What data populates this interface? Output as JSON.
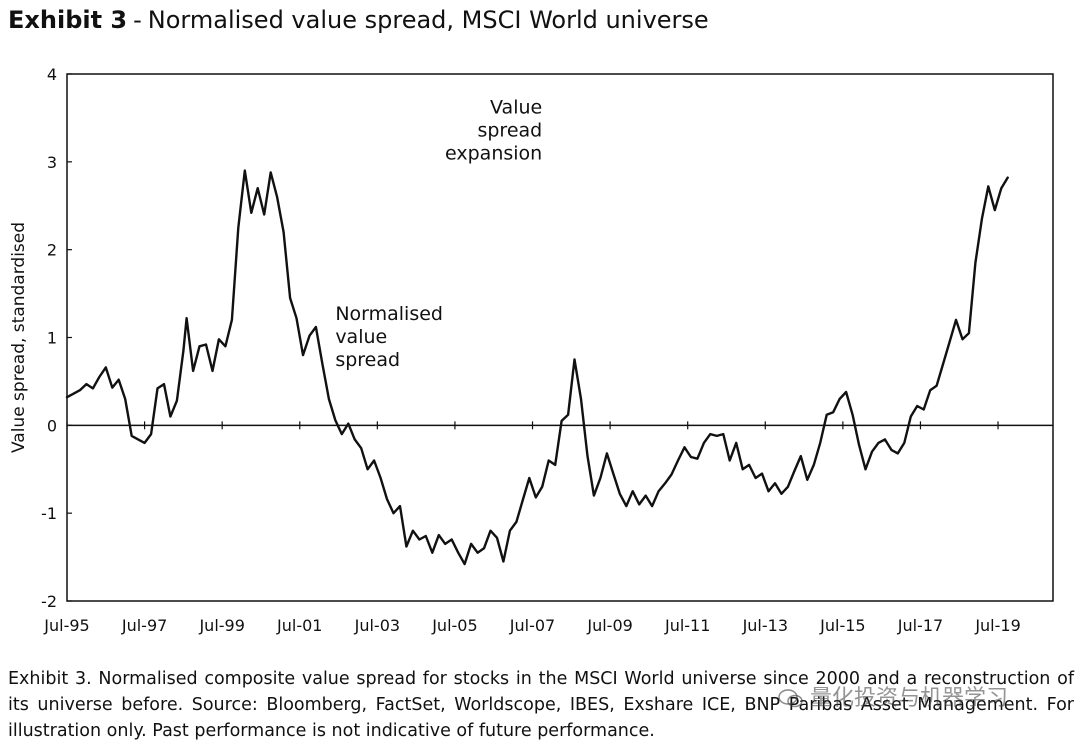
{
  "title": {
    "exhibit": "Exhibit 3",
    "separator": "-",
    "text": "Normalised value spread, MSCI World universe"
  },
  "chart_data": {
    "type": "line",
    "ylabel": "Value spread, standardised",
    "ylim": [
      -2,
      4
    ],
    "yticks": [
      4,
      3,
      2,
      1,
      0,
      -1,
      -2
    ],
    "xlim": [
      "1995-07",
      "2020-12"
    ],
    "xticks": [
      "Jul-95",
      "Jul-97",
      "Jul-99",
      "Jul-01",
      "Jul-03",
      "Jul-05",
      "Jul-07",
      "Jul-09",
      "Jul-11",
      "Jul-13",
      "Jul-15",
      "Jul-17",
      "Jul-19"
    ],
    "grid": false,
    "annotations": [
      {
        "lines": [
          "Value",
          "spread",
          "expansion"
        ],
        "align": "right"
      },
      {
        "lines": [
          "Normalised",
          "value",
          "spread"
        ],
        "align": "left"
      }
    ],
    "series": [
      {
        "name": "Normalised value spread",
        "points": [
          [
            "1995-07",
            0.32
          ],
          [
            "1995-09",
            0.36
          ],
          [
            "1995-11",
            0.4
          ],
          [
            "1996-01",
            0.47
          ],
          [
            "1996-03",
            0.42
          ],
          [
            "1996-05",
            0.55
          ],
          [
            "1996-07",
            0.66
          ],
          [
            "1996-09",
            0.43
          ],
          [
            "1996-11",
            0.52
          ],
          [
            "1997-01",
            0.3
          ],
          [
            "1997-03",
            -0.12
          ],
          [
            "1997-05",
            -0.16
          ],
          [
            "1997-07",
            -0.2
          ],
          [
            "1997-09",
            -0.1
          ],
          [
            "1997-11",
            0.42
          ],
          [
            "1998-01",
            0.47
          ],
          [
            "1998-03",
            0.1
          ],
          [
            "1998-05",
            0.28
          ],
          [
            "1998-07",
            0.85
          ],
          [
            "1998-08",
            1.22
          ],
          [
            "1998-10",
            0.62
          ],
          [
            "1998-12",
            0.9
          ],
          [
            "1999-02",
            0.92
          ],
          [
            "1999-04",
            0.62
          ],
          [
            "1999-06",
            0.98
          ],
          [
            "1999-08",
            0.9
          ],
          [
            "1999-10",
            1.2
          ],
          [
            "1999-12",
            2.25
          ],
          [
            "2000-02",
            2.9
          ],
          [
            "2000-04",
            2.42
          ],
          [
            "2000-06",
            2.7
          ],
          [
            "2000-08",
            2.4
          ],
          [
            "2000-10",
            2.88
          ],
          [
            "2000-12",
            2.6
          ],
          [
            "2001-02",
            2.2
          ],
          [
            "2001-04",
            1.45
          ],
          [
            "2001-06",
            1.22
          ],
          [
            "2001-08",
            0.8
          ],
          [
            "2001-10",
            1.02
          ],
          [
            "2001-12",
            1.12
          ],
          [
            "2002-02",
            0.7
          ],
          [
            "2002-04",
            0.3
          ],
          [
            "2002-06",
            0.06
          ],
          [
            "2002-08",
            -0.1
          ],
          [
            "2002-10",
            0.02
          ],
          [
            "2002-12",
            -0.16
          ],
          [
            "2003-02",
            -0.26
          ],
          [
            "2003-04",
            -0.5
          ],
          [
            "2003-06",
            -0.4
          ],
          [
            "2003-08",
            -0.6
          ],
          [
            "2003-10",
            -0.84
          ],
          [
            "2003-12",
            -1.0
          ],
          [
            "2004-02",
            -0.92
          ],
          [
            "2004-04",
            -1.38
          ],
          [
            "2004-06",
            -1.2
          ],
          [
            "2004-08",
            -1.3
          ],
          [
            "2004-10",
            -1.26
          ],
          [
            "2004-12",
            -1.45
          ],
          [
            "2005-02",
            -1.25
          ],
          [
            "2005-04",
            -1.35
          ],
          [
            "2005-06",
            -1.3
          ],
          [
            "2005-08",
            -1.45
          ],
          [
            "2005-10",
            -1.58
          ],
          [
            "2005-12",
            -1.35
          ],
          [
            "2006-02",
            -1.45
          ],
          [
            "2006-04",
            -1.4
          ],
          [
            "2006-06",
            -1.2
          ],
          [
            "2006-08",
            -1.28
          ],
          [
            "2006-10",
            -1.55
          ],
          [
            "2006-12",
            -1.2
          ],
          [
            "2007-02",
            -1.1
          ],
          [
            "2007-04",
            -0.85
          ],
          [
            "2007-06",
            -0.6
          ],
          [
            "2007-08",
            -0.82
          ],
          [
            "2007-10",
            -0.7
          ],
          [
            "2007-12",
            -0.4
          ],
          [
            "2008-02",
            -0.45
          ],
          [
            "2008-04",
            0.05
          ],
          [
            "2008-06",
            0.12
          ],
          [
            "2008-08",
            0.75
          ],
          [
            "2008-10",
            0.3
          ],
          [
            "2008-12",
            -0.35
          ],
          [
            "2009-02",
            -0.8
          ],
          [
            "2009-04",
            -0.6
          ],
          [
            "2009-06",
            -0.32
          ],
          [
            "2009-08",
            -0.55
          ],
          [
            "2009-10",
            -0.78
          ],
          [
            "2009-12",
            -0.92
          ],
          [
            "2010-02",
            -0.75
          ],
          [
            "2010-04",
            -0.9
          ],
          [
            "2010-06",
            -0.8
          ],
          [
            "2010-08",
            -0.92
          ],
          [
            "2010-10",
            -0.75
          ],
          [
            "2010-12",
            -0.66
          ],
          [
            "2011-02",
            -0.56
          ],
          [
            "2011-04",
            -0.4
          ],
          [
            "2011-06",
            -0.25
          ],
          [
            "2011-08",
            -0.36
          ],
          [
            "2011-10",
            -0.38
          ],
          [
            "2011-12",
            -0.2
          ],
          [
            "2012-02",
            -0.1
          ],
          [
            "2012-04",
            -0.12
          ],
          [
            "2012-06",
            -0.1
          ],
          [
            "2012-08",
            -0.4
          ],
          [
            "2012-10",
            -0.2
          ],
          [
            "2012-12",
            -0.5
          ],
          [
            "2013-02",
            -0.45
          ],
          [
            "2013-04",
            -0.6
          ],
          [
            "2013-06",
            -0.55
          ],
          [
            "2013-08",
            -0.75
          ],
          [
            "2013-10",
            -0.66
          ],
          [
            "2013-12",
            -0.78
          ],
          [
            "2014-02",
            -0.7
          ],
          [
            "2014-04",
            -0.52
          ],
          [
            "2014-06",
            -0.35
          ],
          [
            "2014-08",
            -0.62
          ],
          [
            "2014-10",
            -0.45
          ],
          [
            "2014-12",
            -0.2
          ],
          [
            "2015-02",
            0.12
          ],
          [
            "2015-04",
            0.15
          ],
          [
            "2015-06",
            0.3
          ],
          [
            "2015-08",
            0.38
          ],
          [
            "2015-10",
            0.12
          ],
          [
            "2015-12",
            -0.22
          ],
          [
            "2016-02",
            -0.5
          ],
          [
            "2016-04",
            -0.3
          ],
          [
            "2016-06",
            -0.2
          ],
          [
            "2016-08",
            -0.16
          ],
          [
            "2016-10",
            -0.28
          ],
          [
            "2016-12",
            -0.32
          ],
          [
            "2017-02",
            -0.2
          ],
          [
            "2017-04",
            0.1
          ],
          [
            "2017-06",
            0.22
          ],
          [
            "2017-08",
            0.18
          ],
          [
            "2017-10",
            0.4
          ],
          [
            "2017-12",
            0.45
          ],
          [
            "2018-02",
            0.7
          ],
          [
            "2018-04",
            0.95
          ],
          [
            "2018-06",
            1.2
          ],
          [
            "2018-08",
            0.98
          ],
          [
            "2018-10",
            1.05
          ],
          [
            "2018-12",
            1.85
          ],
          [
            "2019-02",
            2.35
          ],
          [
            "2019-04",
            2.72
          ],
          [
            "2019-06",
            2.45
          ],
          [
            "2019-08",
            2.7
          ],
          [
            "2019-10",
            2.82
          ]
        ]
      }
    ]
  },
  "caption": "Exhibit 3. Normalised composite value spread for stocks in the MSCI World universe since 2000 and a reconstruction of its universe before. Source: Bloomberg, FactSet, Worldscope, IBES, Exshare ICE, BNP Paribas Asset Management. For illustration only. Past performance is not indicative of future performance.",
  "watermark": "量化投资与机器学习",
  "colors": {
    "line": "#111111",
    "axis": "#111111",
    "background": "#ffffff"
  }
}
